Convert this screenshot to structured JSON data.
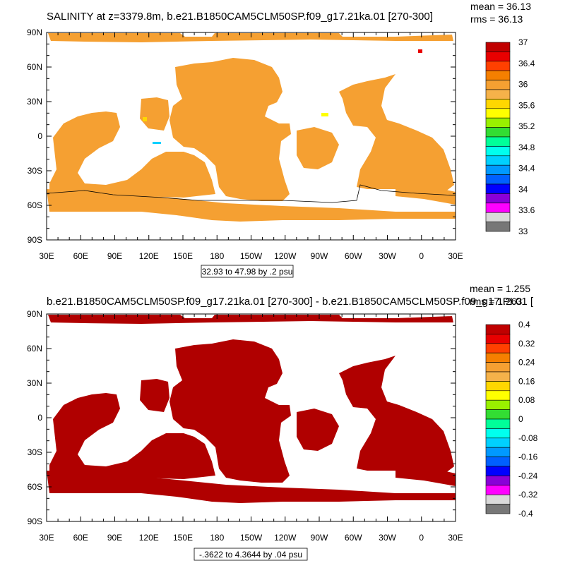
{
  "chart_data": [
    {
      "type": "heatmap",
      "title": "SALINITY at z=3379.8m, b.e21.B1850CAM5CLM50SP.f09_g17.21ka.01 [270-300]",
      "stats": {
        "mean": "mean = 36.13",
        "rms": "rms = 36.13"
      },
      "x_ticks": [
        "30E",
        "60E",
        "90E",
        "120E",
        "150E",
        "180",
        "150W",
        "120W",
        "90W",
        "60W",
        "30W",
        "0",
        "30E"
      ],
      "y_ticks": [
        "90N",
        "60N",
        "30N",
        "0",
        "30S",
        "60S",
        "90S"
      ],
      "ylim": [
        -90,
        90
      ],
      "contour_info": "32.93 to 47.98 by .2 psu",
      "dominant_value_color": "#f5a032",
      "colorbar": {
        "labels": [
          "37",
          "36.4",
          "36",
          "35.6",
          "35.2",
          "34.8",
          "34.4",
          "34",
          "33.6",
          "33"
        ],
        "colors": [
          "#c00000",
          "#e80000",
          "#ff4000",
          "#f57f00",
          "#f5a032",
          "#f5b24a",
          "#ffd700",
          "#ffff00",
          "#99f000",
          "#33dd33",
          "#00ff99",
          "#00ffee",
          "#00d0ff",
          "#0099ff",
          "#0060ff",
          "#0000ff",
          "#8a00d8",
          "#ff00ff",
          "#d9d9d9",
          "#777777"
        ]
      }
    },
    {
      "type": "heatmap",
      "title": "b.e21.B1850CAM5CLM50SP.f09_g17.21ka.01 [270-300] - b.e21.B1850CAM5CLM50SP.f09_g17.PI.01 [",
      "stats": {
        "mean": "mean = 1.255",
        "rms": "rms = 1.263"
      },
      "x_ticks": [
        "30E",
        "60E",
        "90E",
        "120E",
        "150E",
        "180",
        "150W",
        "120W",
        "90W",
        "60W",
        "30W",
        "0",
        "30E"
      ],
      "y_ticks": [
        "90N",
        "60N",
        "30N",
        "0",
        "30S",
        "60S",
        "90S"
      ],
      "ylim": [
        -90,
        90
      ],
      "contour_info": "-.3622 to 4.3644 by .04 psu",
      "dominant_value_color": "#b00000",
      "colorbar": {
        "labels": [
          "0.4",
          "0.32",
          "0.24",
          "0.16",
          "0.08",
          "0",
          "-0.08",
          "-0.16",
          "-0.24",
          "-0.32",
          "-0.4"
        ],
        "colors": [
          "#c00000",
          "#e80000",
          "#ff4000",
          "#f57f00",
          "#f5a032",
          "#f5b24a",
          "#ffd700",
          "#ffff00",
          "#99f000",
          "#33dd33",
          "#00ff99",
          "#00ffee",
          "#00d0ff",
          "#0099ff",
          "#0060ff",
          "#0000ff",
          "#8a00d8",
          "#ff00ff",
          "#d9d9d9",
          "#777777"
        ]
      }
    }
  ]
}
